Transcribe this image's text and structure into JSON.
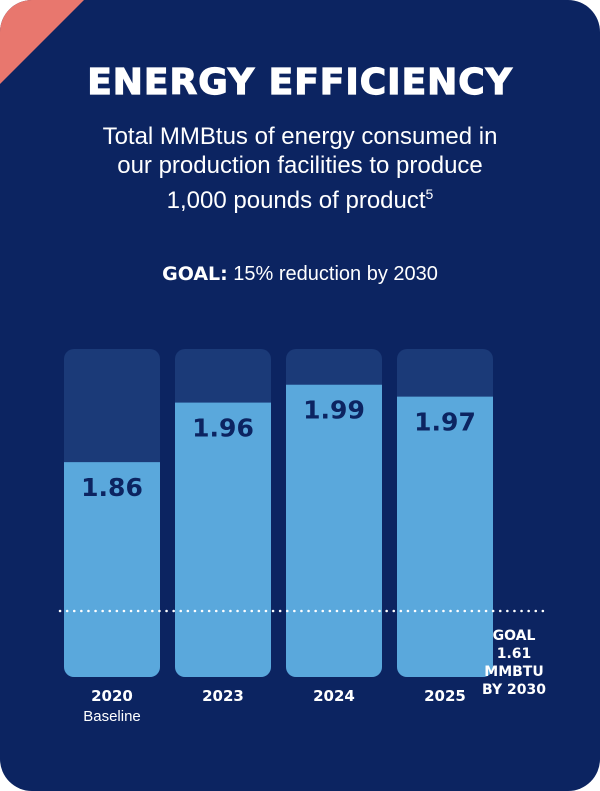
{
  "header": {
    "title": "ENERGY EFFICIENCY",
    "subtitle_lines": [
      "Total MMBtus of energy consumed in",
      "our production facilities to produce",
      "1,000 pounds of product"
    ],
    "subtitle_sup": "5",
    "goal_prefix": "GOAL:",
    "goal_text": " 15% reduction by 2030"
  },
  "colors": {
    "background": "#0c2461",
    "bar_fill": "#5aa8dc",
    "bar_track": "#1b3a78",
    "corner_accent": "#e8776e"
  },
  "chart_data": {
    "type": "bar",
    "categories": [
      "2020",
      "2023",
      "2024",
      "2025"
    ],
    "category_sublabels": [
      "Baseline",
      "",
      "",
      ""
    ],
    "values": [
      1.86,
      1.96,
      1.99,
      1.97
    ],
    "value_labels": [
      "1.86",
      "1.96",
      "1.99",
      "1.97"
    ],
    "ylim": [
      0,
      2.05
    ],
    "goal": {
      "value": 1.61,
      "label_lines": [
        "GOAL",
        "1.61",
        "MMBTU",
        "BY 2030"
      ]
    }
  }
}
